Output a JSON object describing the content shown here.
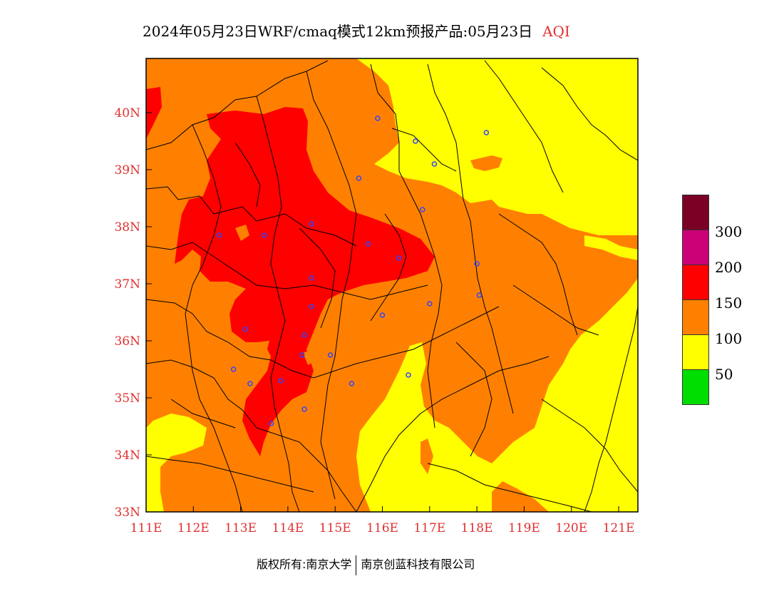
{
  "header": {
    "title": "2024年05月23日WRF/cmaq模式12km预报产品:05月23日",
    "product": "AQI"
  },
  "axes": {
    "lat_labels": [
      "40N",
      "39N",
      "38N",
      "37N",
      "36N",
      "35N",
      "34N",
      "33N"
    ],
    "lon_labels": [
      "111E",
      "112E",
      "113E",
      "114E",
      "115E",
      "116E",
      "117E",
      "118E",
      "119E",
      "120E",
      "121E"
    ]
  },
  "legend": {
    "colors": [
      "#7a0026",
      "#cc0077",
      "#ff0000",
      "#ff8000",
      "#ffff00",
      "#00dd00"
    ],
    "labels": [
      "300",
      "200",
      "150",
      "100",
      "50"
    ]
  },
  "footer": {
    "copyright": "版权所有:南京大学",
    "company": "南京创蓝科技有限公司"
  },
  "stations": [
    {
      "lon": 115.9,
      "lat": 39.9
    },
    {
      "lon": 116.7,
      "lat": 39.5
    },
    {
      "lon": 117.1,
      "lat": 39.1
    },
    {
      "lon": 118.2,
      "lat": 39.65
    },
    {
      "lon": 115.5,
      "lat": 38.85
    },
    {
      "lon": 116.85,
      "lat": 38.3
    },
    {
      "lon": 114.5,
      "lat": 38.05
    },
    {
      "lon": 113.5,
      "lat": 37.85
    },
    {
      "lon": 112.55,
      "lat": 37.85
    },
    {
      "lon": 115.7,
      "lat": 37.7
    },
    {
      "lon": 116.35,
      "lat": 37.45
    },
    {
      "lon": 114.5,
      "lat": 37.1
    },
    {
      "lon": 114.5,
      "lat": 36.6
    },
    {
      "lon": 113.1,
      "lat": 36.2
    },
    {
      "lon": 114.35,
      "lat": 36.1
    },
    {
      "lon": 116.0,
      "lat": 36.45
    },
    {
      "lon": 117.0,
      "lat": 36.65
    },
    {
      "lon": 118.0,
      "lat": 37.35
    },
    {
      "lon": 118.05,
      "lat": 36.8
    },
    {
      "lon": 114.3,
      "lat": 35.75
    },
    {
      "lon": 114.9,
      "lat": 35.75
    },
    {
      "lon": 112.85,
      "lat": 35.5
    },
    {
      "lon": 113.85,
      "lat": 35.3
    },
    {
      "lon": 113.2,
      "lat": 35.25
    },
    {
      "lon": 115.35,
      "lat": 35.25
    },
    {
      "lon": 116.55,
      "lat": 35.4
    },
    {
      "lon": 114.35,
      "lat": 34.8
    },
    {
      "lon": 113.65,
      "lat": 34.55
    }
  ]
}
